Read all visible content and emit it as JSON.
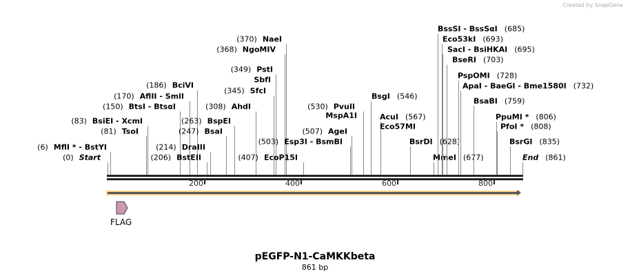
{
  "credit": "Created by SnapGene",
  "title": "pEGFP-N1-CaMKKbeta",
  "length_label": "861 bp",
  "total_bp": 861,
  "ticks": [
    "200",
    "400",
    "600",
    "800"
  ],
  "feature": {
    "name": "FLAG",
    "color": "#cc99b3"
  },
  "sites": [
    {
      "name": "Start",
      "pos": "(0)",
      "bp": 0,
      "italic": true
    },
    {
      "name": "MflI * - BstYI",
      "pos": "(6)",
      "bp": 6
    },
    {
      "name": "TsoI",
      "pos": "(81)",
      "bp": 81
    },
    {
      "name": "BsiEI  - XcmI",
      "pos": "(83)",
      "bp": 83
    },
    {
      "name": "BtsI  - BtsαI",
      "pos": "(150)",
      "bp": 150
    },
    {
      "name": "AflII  - SmlI",
      "pos": "(170)",
      "bp": 170
    },
    {
      "name": "BciVI",
      "pos": "(186)",
      "bp": 186
    },
    {
      "name": "BstEII",
      "pos": "(206)",
      "bp": 206
    },
    {
      "name": "DraIII",
      "pos": "(214)",
      "bp": 214
    },
    {
      "name": "BsaI",
      "pos": "(247)",
      "bp": 247
    },
    {
      "name": "BspEI",
      "pos": "(263)",
      "bp": 263
    },
    {
      "name": "AhdI",
      "pos": "(308)",
      "bp": 308
    },
    {
      "name": "SfcI",
      "pos": "(345)",
      "bp": 345
    },
    {
      "name": "SbfI",
      "pos": "",
      "bp": 349
    },
    {
      "name": "PstI",
      "pos": "(349)",
      "bp": 349
    },
    {
      "name": "NgoMIV",
      "pos": "(368)",
      "bp": 368
    },
    {
      "name": "NaeI",
      "pos": "(370)",
      "bp": 370
    },
    {
      "name": "EcoP15I",
      "pos": "(407)",
      "bp": 407
    },
    {
      "name": "Esp3I  - BsmBI",
      "pos": "(503)",
      "bp": 503
    },
    {
      "name": "AgeI",
      "pos": "(507)",
      "bp": 507
    },
    {
      "name": "MspA1I",
      "pos": "",
      "bp": 530
    },
    {
      "name": "PvuII",
      "pos": "(530)",
      "bp": 530
    },
    {
      "name": "BsgI",
      "pos": "(546)",
      "bp": 546
    },
    {
      "name": "AcuI",
      "pos": "(567)",
      "bp": 567
    },
    {
      "name": "Eco57MI",
      "pos": "",
      "bp": 567
    },
    {
      "name": "BsrDI",
      "pos": "(628)",
      "bp": 628
    },
    {
      "name": "MmeI",
      "pos": "(677)",
      "bp": 677
    },
    {
      "name": "BssSI  - BssSαI",
      "pos": "(685)",
      "bp": 685
    },
    {
      "name": "Eco53kI",
      "pos": "(693)",
      "bp": 693
    },
    {
      "name": "SacI  - BsiHKAI",
      "pos": "(695)",
      "bp": 695
    },
    {
      "name": "BseRI",
      "pos": "(703)",
      "bp": 703
    },
    {
      "name": "PspOMI",
      "pos": "(728)",
      "bp": 728
    },
    {
      "name": "ApaI  - BaeGI  - Bme1580I",
      "pos": "(732)",
      "bp": 732
    },
    {
      "name": "BsaBI",
      "pos": "(759)",
      "bp": 759
    },
    {
      "name": "PpuMI *",
      "pos": "(806)",
      "bp": 806
    },
    {
      "name": "PfoI *",
      "pos": "(808)",
      "bp": 808
    },
    {
      "name": "BsrGI",
      "pos": "(835)",
      "bp": 835
    },
    {
      "name": "End",
      "pos": "(861)",
      "bp": 861,
      "italic": true
    }
  ]
}
